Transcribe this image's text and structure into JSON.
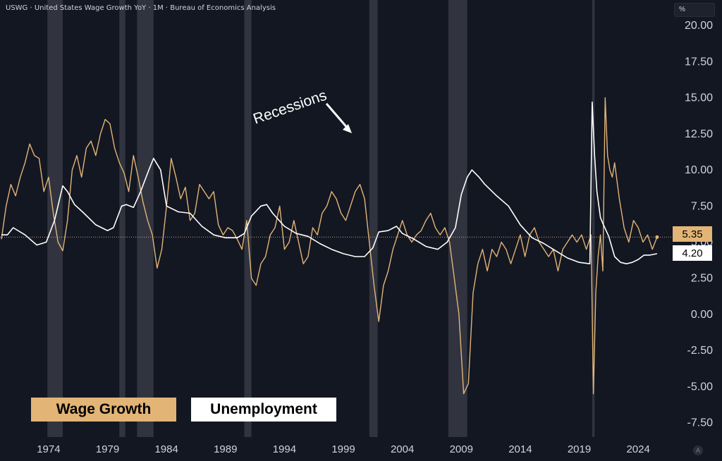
{
  "header": {
    "title": "USWG · United States Wage Growth YoY · 1M · Bureau of Economics Analysis",
    "unit_label": "%"
  },
  "legend": {
    "wage_label": "Wage Growth",
    "unemployment_label": "Unemployment"
  },
  "annotation": {
    "text": "Recessions"
  },
  "last_values": {
    "wage": "5.35",
    "unemployment": "4.20"
  },
  "auto_label": "A",
  "colors": {
    "background": "#131722",
    "wage": "#e2b476",
    "unemployment": "#ffffff",
    "recession": "#4a4d57"
  },
  "chart_data": {
    "type": "line",
    "title": "USWG · United States Wage Growth YoY · 1M · Bureau of Economics Analysis",
    "xlabel": "",
    "ylabel": "%",
    "xlim": [
      1970.0,
      2026.8
    ],
    "ylim": [
      -8.5,
      20.5
    ],
    "x_ticks": [
      1974,
      1979,
      1984,
      1989,
      1994,
      1999,
      2004,
      2009,
      2014,
      2019,
      2024
    ],
    "y_ticks": [
      "20.00",
      "17.50",
      "15.00",
      "12.50",
      "10.00",
      "7.50",
      "5.00",
      "2.50",
      "0.00",
      "-2.50",
      "-5.00",
      "-7.50"
    ],
    "grid": false,
    "legend_position": "bottom-left",
    "recessions": [
      [
        1973.9,
        1975.2
      ],
      [
        1980.0,
        1980.5
      ],
      [
        1981.5,
        1982.9
      ],
      [
        1990.6,
        1991.2
      ],
      [
        2001.2,
        2001.9
      ],
      [
        2007.9,
        2009.5
      ],
      [
        2020.1,
        2020.3
      ]
    ],
    "series": [
      {
        "name": "Wage Growth",
        "x": [
          1970.0,
          1970.4,
          1970.8,
          1971.2,
          1971.6,
          1972.0,
          1972.4,
          1972.8,
          1973.2,
          1973.6,
          1974.0,
          1974.4,
          1974.8,
          1975.2,
          1975.6,
          1976.0,
          1976.4,
          1976.8,
          1977.2,
          1977.6,
          1978.0,
          1978.4,
          1978.8,
          1979.2,
          1979.6,
          1980.0,
          1980.4,
          1980.8,
          1981.2,
          1981.6,
          1982.0,
          1982.4,
          1982.8,
          1983.2,
          1983.6,
          1984.0,
          1984.4,
          1984.8,
          1985.2,
          1985.6,
          1986.0,
          1986.4,
          1986.8,
          1987.2,
          1987.6,
          1988.0,
          1988.4,
          1988.8,
          1989.2,
          1989.6,
          1990.0,
          1990.4,
          1990.8,
          1991.2,
          1991.6,
          1992.0,
          1992.4,
          1992.8,
          1993.2,
          1993.6,
          1994.0,
          1994.4,
          1994.8,
          1995.2,
          1995.6,
          1996.0,
          1996.4,
          1996.8,
          1997.2,
          1997.6,
          1998.0,
          1998.4,
          1998.8,
          1999.2,
          1999.6,
          2000.0,
          2000.4,
          2000.8,
          2001.2,
          2001.6,
          2002.0,
          2002.4,
          2002.8,
          2003.2,
          2003.6,
          2004.0,
          2004.4,
          2004.8,
          2005.2,
          2005.6,
          2006.0,
          2006.4,
          2006.8,
          2007.2,
          2007.6,
          2008.0,
          2008.4,
          2008.8,
          2009.2,
          2009.6,
          2010.0,
          2010.4,
          2010.8,
          2011.2,
          2011.6,
          2012.0,
          2012.4,
          2012.8,
          2013.2,
          2013.6,
          2014.0,
          2014.4,
          2014.8,
          2015.2,
          2015.6,
          2016.0,
          2016.4,
          2016.8,
          2017.2,
          2017.6,
          2018.0,
          2018.4,
          2018.8,
          2019.2,
          2019.6,
          2020.0,
          2020.2,
          2020.4,
          2020.6,
          2020.8,
          2021.0,
          2021.2,
          2021.4,
          2021.6,
          2021.8,
          2022.0,
          2022.4,
          2022.8,
          2023.2,
          2023.6,
          2024.0,
          2024.4,
          2024.8,
          2025.2,
          2025.6
        ],
        "values": [
          5.2,
          7.5,
          9.0,
          8.2,
          9.5,
          10.5,
          11.8,
          11.0,
          10.8,
          8.5,
          9.5,
          7.0,
          5.0,
          4.4,
          6.5,
          10.0,
          11.0,
          9.5,
          11.5,
          12.0,
          11.0,
          12.5,
          13.5,
          13.2,
          11.5,
          10.5,
          9.8,
          8.5,
          11.0,
          9.5,
          7.8,
          6.5,
          5.5,
          3.2,
          4.5,
          7.5,
          10.8,
          9.5,
          8.0,
          8.8,
          6.5,
          7.0,
          9.0,
          8.5,
          8.0,
          8.5,
          6.2,
          5.5,
          6.0,
          5.8,
          5.2,
          4.5,
          6.5,
          2.5,
          2.0,
          3.5,
          4.0,
          5.5,
          6.0,
          7.5,
          4.5,
          5.0,
          6.5,
          5.0,
          3.5,
          4.0,
          6.0,
          5.5,
          7.0,
          7.5,
          8.5,
          8.0,
          7.0,
          6.5,
          7.5,
          8.5,
          9.0,
          8.0,
          5.0,
          2.0,
          -0.5,
          2.0,
          3.0,
          4.5,
          5.5,
          6.5,
          5.5,
          5.0,
          5.5,
          5.8,
          6.5,
          7.0,
          6.0,
          5.5,
          6.0,
          5.0,
          2.5,
          0.0,
          -5.5,
          -4.8,
          1.5,
          3.5,
          4.5,
          3.0,
          4.5,
          4.0,
          5.0,
          4.5,
          3.5,
          4.5,
          5.5,
          4.0,
          5.5,
          6.0,
          5.0,
          4.5,
          4.0,
          4.5,
          3.0,
          4.5,
          5.0,
          5.5,
          5.0,
          5.5,
          4.5,
          5.5,
          -5.5,
          1.5,
          4.0,
          5.5,
          3.0,
          15.0,
          11.0,
          10.0,
          9.5,
          10.5,
          8.0,
          6.0,
          5.0,
          6.5,
          6.0,
          5.0,
          5.5,
          4.5,
          5.35
        ]
      },
      {
        "name": "Unemployment",
        "x": [
          1970.0,
          1970.5,
          1971.0,
          1972.0,
          1973.0,
          1973.8,
          1974.5,
          1975.2,
          1975.6,
          1976.2,
          1977.0,
          1978.0,
          1979.0,
          1979.5,
          1980.2,
          1980.6,
          1981.2,
          1981.8,
          1982.5,
          1982.9,
          1983.5,
          1984.0,
          1985.0,
          1986.0,
          1987.0,
          1988.0,
          1989.0,
          1990.0,
          1990.6,
          1991.2,
          1992.0,
          1992.5,
          1993.0,
          1994.0,
          1995.0,
          1996.0,
          1997.0,
          1998.0,
          1999.0,
          2000.0,
          2000.8,
          2001.5,
          2002.0,
          2002.8,
          2003.5,
          2004.0,
          2005.0,
          2006.0,
          2007.0,
          2007.8,
          2008.5,
          2009.0,
          2009.5,
          2009.9,
          2010.5,
          2011.0,
          2012.0,
          2013.0,
          2014.0,
          2015.0,
          2016.0,
          2017.0,
          2018.0,
          2019.0,
          2019.9,
          2020.1,
          2020.3,
          2020.5,
          2020.8,
          2021.0,
          2021.5,
          2022.0,
          2022.5,
          2023.0,
          2023.5,
          2024.0,
          2024.5,
          2025.0,
          2025.6
        ],
        "values": [
          5.5,
          5.5,
          6.0,
          5.5,
          4.8,
          5.0,
          6.5,
          8.9,
          8.5,
          7.6,
          7.0,
          6.2,
          5.8,
          6.0,
          7.5,
          7.6,
          7.4,
          8.5,
          10.0,
          10.8,
          10.0,
          7.5,
          7.1,
          7.0,
          6.1,
          5.5,
          5.3,
          5.3,
          5.6,
          6.8,
          7.5,
          7.6,
          7.0,
          6.1,
          5.6,
          5.4,
          4.9,
          4.5,
          4.2,
          4.0,
          4.0,
          4.6,
          5.7,
          5.8,
          6.1,
          5.6,
          5.2,
          4.7,
          4.5,
          5.0,
          6.0,
          8.3,
          9.5,
          10.0,
          9.5,
          9.0,
          8.2,
          7.5,
          6.2,
          5.3,
          4.9,
          4.4,
          3.9,
          3.6,
          3.5,
          14.7,
          11.0,
          8.5,
          6.7,
          6.3,
          5.4,
          4.0,
          3.6,
          3.5,
          3.6,
          3.8,
          4.1,
          4.1,
          4.2
        ]
      }
    ]
  }
}
